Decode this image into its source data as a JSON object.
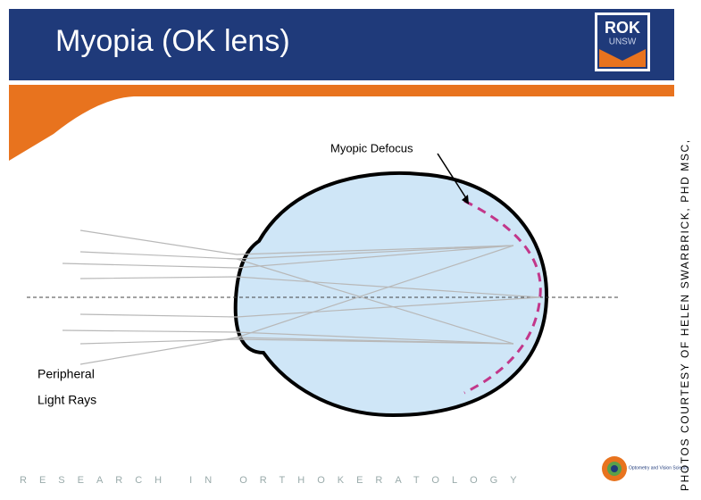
{
  "header": {
    "title": "Myopia (OK lens)",
    "logo_top": "ROK",
    "logo_bottom": "UNSW"
  },
  "diagram": {
    "annotation": "Myopic Defocus",
    "rays_label_line1": "Peripheral",
    "rays_label_line2": "Light Rays"
  },
  "footer": {
    "text": "RESEARCH IN ORTHOKERATOLOGY",
    "logo_text": "Optometry and Vision Science"
  },
  "credit": {
    "line1": "PHOTOS COURTESY OF HELEN SWARBRICK, PHD MSC,"
  }
}
